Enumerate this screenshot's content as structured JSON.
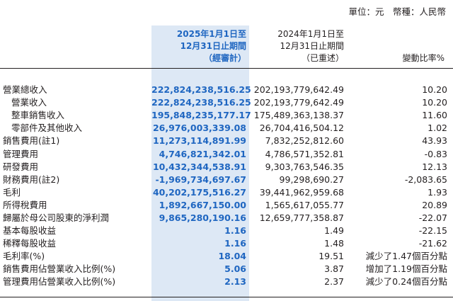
{
  "unit_line": "單位：元　幣種：人民幣",
  "headers": {
    "current": [
      "2025年1月1日至",
      "12月31日止期間",
      "（經審計）"
    ],
    "previous": [
      "2024年1月1日至",
      "12月31日止期間",
      "（已重述）"
    ],
    "change": "變動比率%"
  },
  "rows": [
    {
      "label": "營業總收入",
      "indent": false,
      "current": "222,824,238,516.25",
      "previous": "202,193,779,642.49",
      "change": "10.20"
    },
    {
      "label": "營業收入",
      "indent": true,
      "current": "222,824,238,516.25",
      "previous": "202,193,779,642.49",
      "change": "10.20"
    },
    {
      "label": "整車銷售收入",
      "indent": true,
      "current": "195,848,235,177.17",
      "previous": "175,489,363,138.37",
      "change": "11.60"
    },
    {
      "label": "零部件及其他收入",
      "indent": true,
      "current": "26,976,003,339.08",
      "previous": "26,704,416,504.12",
      "change": "1.02"
    },
    {
      "label": "銷售費用(註1)",
      "indent": false,
      "current": "11,273,114,891.99",
      "previous": "7,832,252,812.60",
      "change": "43.93"
    },
    {
      "label": "管理費用",
      "indent": false,
      "current": "4,746,821,342.01",
      "previous": "4,786,571,352.81",
      "change": "-0.83"
    },
    {
      "label": "研發費用",
      "indent": false,
      "current": "10,432,344,538.91",
      "previous": "9,303,763,546.35",
      "change": "12.13"
    },
    {
      "label": "財務費用(註2)",
      "indent": false,
      "current": "-1,969,734,697.67",
      "previous": "99,298,690.27",
      "change": "-2,083.65"
    },
    {
      "label": "毛利",
      "indent": false,
      "current": "40,202,175,516.27",
      "previous": "39,441,962,959.68",
      "change": "1.93"
    },
    {
      "label": "所得稅費用",
      "indent": false,
      "current": "1,892,667,150.00",
      "previous": "1,565,617,055.77",
      "change": "20.89"
    },
    {
      "label": "歸屬於母公司股東的淨利潤",
      "indent": false,
      "current": "9,865,280,190.16",
      "previous": "12,659,777,358.87",
      "change": "-22.07"
    },
    {
      "label": "基本每股收益",
      "indent": false,
      "current": "1.16",
      "previous": "1.49",
      "change": "-22.15"
    },
    {
      "label": "稀釋每股收益",
      "indent": false,
      "current": "1.16",
      "previous": "1.48",
      "change": "-21.62"
    },
    {
      "label": "毛利率(%)",
      "indent": false,
      "current": "18.04",
      "previous": "19.51",
      "change": "減少了1.47個百分點"
    },
    {
      "label": "銷售費用佔營業收入比例(%)",
      "indent": false,
      "current": "5.06",
      "previous": "3.87",
      "change": "增加了1.19個百分點"
    },
    {
      "label": "管理費用佔營業收入比例(%)",
      "indent": false,
      "current": "2.13",
      "previous": "2.37",
      "change": "減少了0.24個百分點"
    }
  ]
}
